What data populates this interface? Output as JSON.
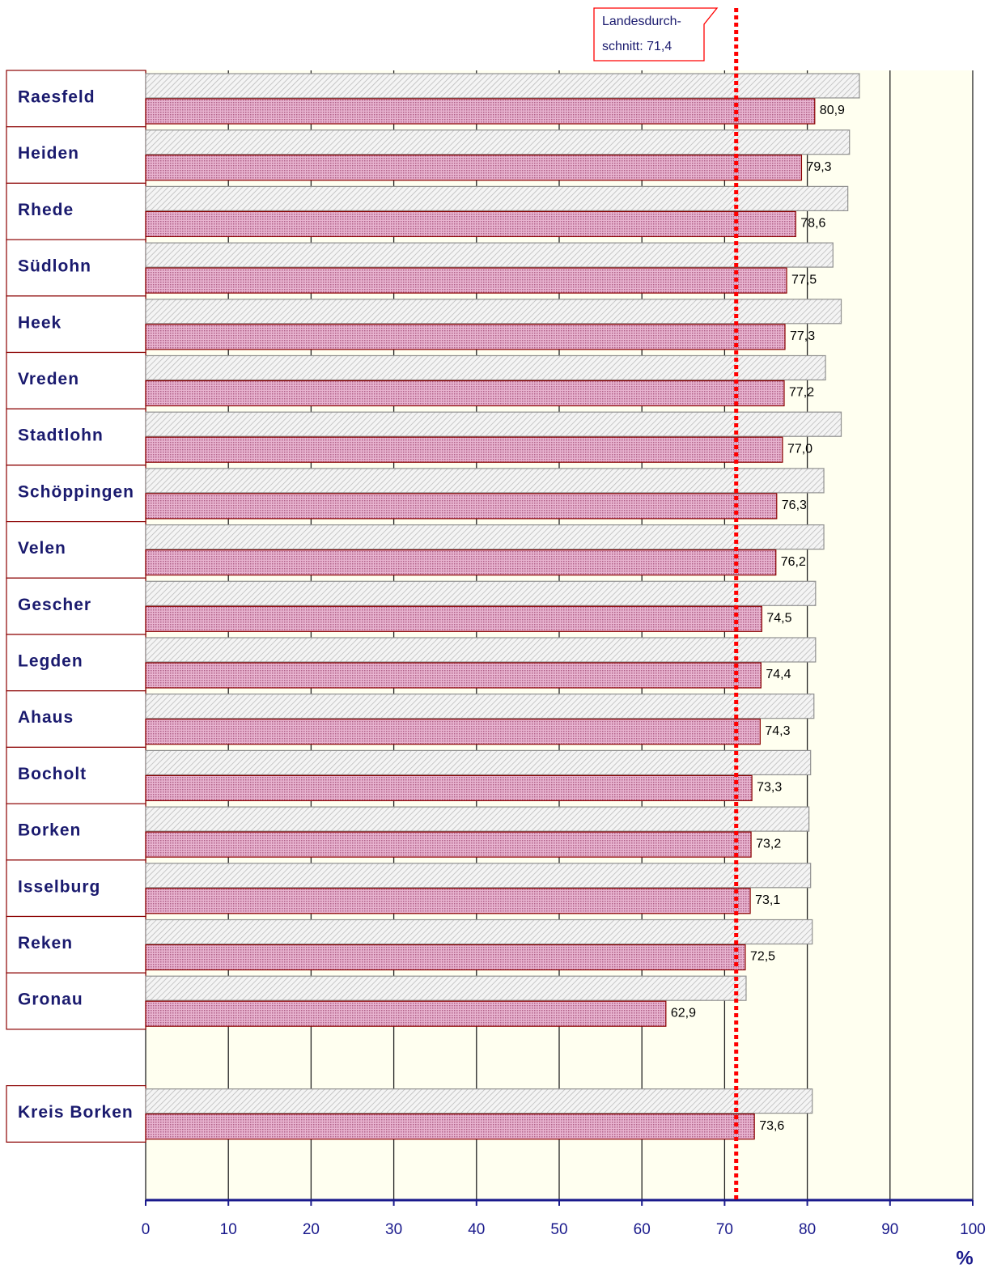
{
  "chart_data": {
    "type": "bar",
    "orientation": "horizontal",
    "categories": [
      "Raesfeld",
      "Heiden",
      "Rhede",
      "Südlohn",
      "Heek",
      "Vreden",
      "Stadtlohn",
      "Schöppingen",
      "Velen",
      "Gescher",
      "Legden",
      "Ahaus",
      "Bocholt",
      "Borken",
      "Isselburg",
      "Reken",
      "Gronau",
      null,
      "Kreis Borken"
    ],
    "series": [
      {
        "color": "#c8c8c8",
        "values": [
          86.3,
          85.1,
          84.9,
          83.1,
          84.1,
          82.2,
          84.1,
          82.0,
          82.0,
          81.0,
          81.0,
          80.8,
          80.4,
          80.2,
          80.4,
          80.6,
          72.6,
          null,
          80.6
        ]
      },
      {
        "color": "#8b0000",
        "values": [
          80.9,
          79.3,
          78.6,
          77.5,
          77.3,
          77.2,
          77.0,
          76.3,
          76.2,
          74.5,
          74.4,
          74.3,
          73.3,
          73.2,
          73.1,
          72.5,
          62.9,
          null,
          73.6
        ],
        "value_labels": [
          "80,9",
          "79,3",
          "78,6",
          "77,5",
          "77,3",
          "77,2",
          "77,0",
          "76,3",
          "76,2",
          "74,5",
          "74,4",
          "74,3",
          "73,3",
          "73,2",
          "73,1",
          "72,5",
          "62,9",
          null,
          "73,6"
        ]
      }
    ],
    "xlim": [
      0,
      100
    ],
    "xticks": [
      0,
      10,
      20,
      30,
      40,
      50,
      60,
      70,
      80,
      90,
      100
    ],
    "x_label": "%",
    "grid": true,
    "annotation": {
      "value": 71.4,
      "lines": [
        "Landesdurch-",
        "schnitt:  71,4"
      ],
      "color": "#ff0000"
    }
  }
}
